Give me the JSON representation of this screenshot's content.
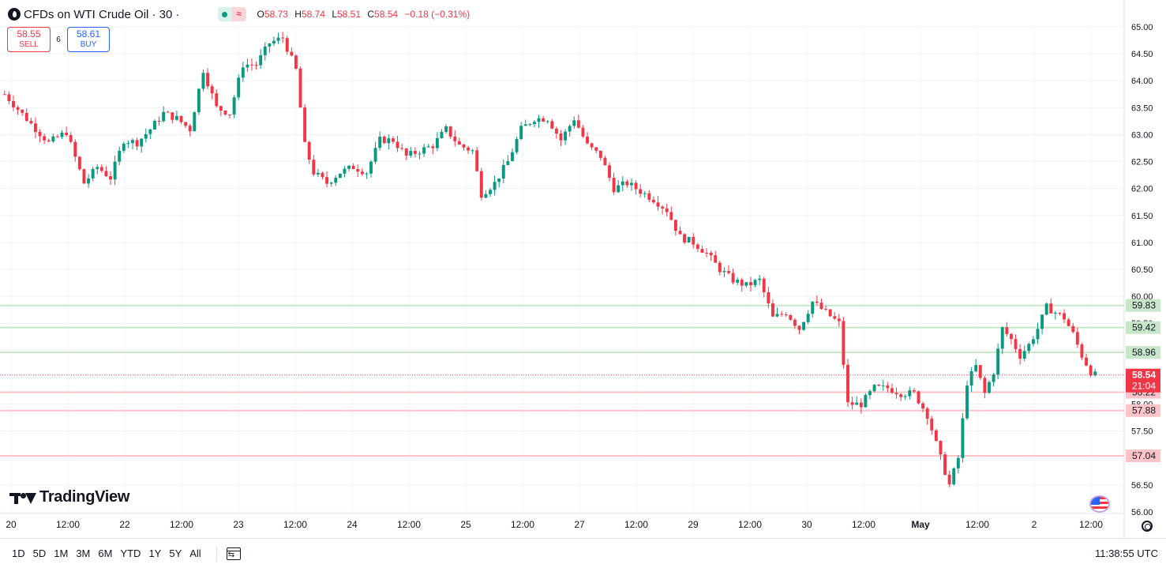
{
  "legend": {
    "symbol_title": "CFDs on WTI Crude Oil · 30 ·",
    "open_label": "O",
    "open": "58.73",
    "high_label": "H",
    "high": "58.74",
    "low_label": "L",
    "low": "58.51",
    "close_label": "C",
    "close": "58.54",
    "change": "−0.18 (−0.31%)",
    "status_icon": "market-open-dot-icon",
    "data_icon": "delayed-data-wave-icon"
  },
  "trade": {
    "sell_price": "58.55",
    "sell_label": "SELL",
    "spread": "6",
    "buy_price": "58.61",
    "buy_label": "BUY"
  },
  "branding": {
    "logo_text": "TradingView"
  },
  "timeframes": [
    "1D",
    "5D",
    "1M",
    "3M",
    "6M",
    "YTD",
    "1Y",
    "5Y",
    "All"
  ],
  "clock": "11:38:55 UTC",
  "colors": {
    "up": "#089981",
    "down": "#f23645",
    "resistance_line": "#c8e6c9",
    "support_line": "#fbc4c8",
    "grid": "#f0f3fa",
    "text": "#131722"
  },
  "chart_data": {
    "type": "candlestick",
    "ylim": [
      56.0,
      65.0
    ],
    "y_ticks": [
      "65.00",
      "64.50",
      "64.00",
      "63.50",
      "63.00",
      "62.50",
      "62.00",
      "61.50",
      "61.00",
      "60.50",
      "60.00",
      "59.50",
      "59.00",
      "58.50",
      "58.00",
      "57.50",
      "57.00",
      "56.50",
      "56.00"
    ],
    "x_ticks": [
      "20",
      "12:00",
      "22",
      "12:00",
      "23",
      "12:00",
      "24",
      "12:00",
      "25",
      "12:00",
      "27",
      "12:00",
      "29",
      "12:00",
      "30",
      "12:00",
      "May",
      "12:00",
      "2",
      "12:00"
    ],
    "bold_x_ticks": [
      "May"
    ],
    "horizontal_levels": [
      {
        "price": 59.83,
        "label": "59.83",
        "kind": "resistance"
      },
      {
        "price": 59.42,
        "label": "59.42",
        "kind": "resistance"
      },
      {
        "price": 58.96,
        "label": "58.96",
        "kind": "resistance"
      },
      {
        "price": 58.22,
        "label": "58.22",
        "kind": "support"
      },
      {
        "price": 57.88,
        "label": "57.88",
        "kind": "support"
      },
      {
        "price": 57.04,
        "label": "57.04",
        "kind": "support"
      }
    ],
    "last_price": {
      "price": 58.54,
      "label": "58.54",
      "countdown": "21:04"
    },
    "price_path": [
      [
        0,
        63.75
      ],
      [
        6,
        63.2
      ],
      [
        10,
        62.85
      ],
      [
        14,
        63.05
      ],
      [
        18,
        62.1
      ],
      [
        21,
        62.4
      ],
      [
        24,
        62.2
      ],
      [
        27,
        62.9
      ],
      [
        30,
        62.85
      ],
      [
        33,
        63.1
      ],
      [
        36,
        63.4
      ],
      [
        39,
        63.3
      ],
      [
        42,
        63.1
      ],
      [
        45,
        64.2
      ],
      [
        48,
        63.5
      ],
      [
        51,
        63.4
      ],
      [
        54,
        64.3
      ],
      [
        57,
        64.3
      ],
      [
        60,
        64.7
      ],
      [
        63,
        64.8
      ],
      [
        66,
        64.2
      ],
      [
        68,
        62.8
      ],
      [
        70,
        62.3
      ],
      [
        73,
        62.1
      ],
      [
        76,
        62.3
      ],
      [
        79,
        62.4
      ],
      [
        82,
        62.3
      ],
      [
        85,
        62.9
      ],
      [
        88,
        62.9
      ],
      [
        91,
        62.6
      ],
      [
        94,
        62.7
      ],
      [
        97,
        62.8
      ],
      [
        100,
        63.1
      ],
      [
        103,
        62.8
      ],
      [
        106,
        62.7
      ],
      [
        108,
        61.9
      ],
      [
        111,
        62.1
      ],
      [
        114,
        62.5
      ],
      [
        117,
        63.1
      ],
      [
        120,
        63.3
      ],
      [
        123,
        63.3
      ],
      [
        126,
        62.9
      ],
      [
        129,
        63.3
      ],
      [
        132,
        62.8
      ],
      [
        135,
        62.6
      ],
      [
        138,
        62.0
      ],
      [
        141,
        62.1
      ],
      [
        144,
        61.95
      ],
      [
        147,
        61.8
      ],
      [
        150,
        61.6
      ],
      [
        153,
        61.1
      ],
      [
        156,
        61.0
      ],
      [
        159,
        60.8
      ],
      [
        162,
        60.5
      ],
      [
        165,
        60.3
      ],
      [
        168,
        60.2
      ],
      [
        171,
        60.3
      ],
      [
        174,
        59.6
      ],
      [
        177,
        59.7
      ],
      [
        180,
        59.4
      ],
      [
        183,
        59.9
      ],
      [
        186,
        59.7
      ],
      [
        189,
        59.5
      ],
      [
        191,
        58.0
      ],
      [
        194,
        58.0
      ],
      [
        197,
        58.3
      ],
      [
        200,
        58.3
      ],
      [
        203,
        58.2
      ],
      [
        206,
        58.2
      ],
      [
        209,
        57.8
      ],
      [
        212,
        57.0
      ],
      [
        214,
        56.5
      ],
      [
        216,
        57.0
      ],
      [
        218,
        58.4
      ],
      [
        220,
        58.7
      ],
      [
        222,
        58.2
      ],
      [
        224,
        58.6
      ],
      [
        226,
        59.4
      ],
      [
        228,
        59.2
      ],
      [
        230,
        58.9
      ],
      [
        232,
        59.1
      ],
      [
        234,
        59.4
      ],
      [
        236,
        59.8
      ],
      [
        238,
        59.7
      ],
      [
        240,
        59.6
      ],
      [
        242,
        59.3
      ],
      [
        244,
        58.9
      ],
      [
        246,
        58.6
      ],
      [
        247,
        58.54
      ]
    ],
    "candle_count": 248
  }
}
